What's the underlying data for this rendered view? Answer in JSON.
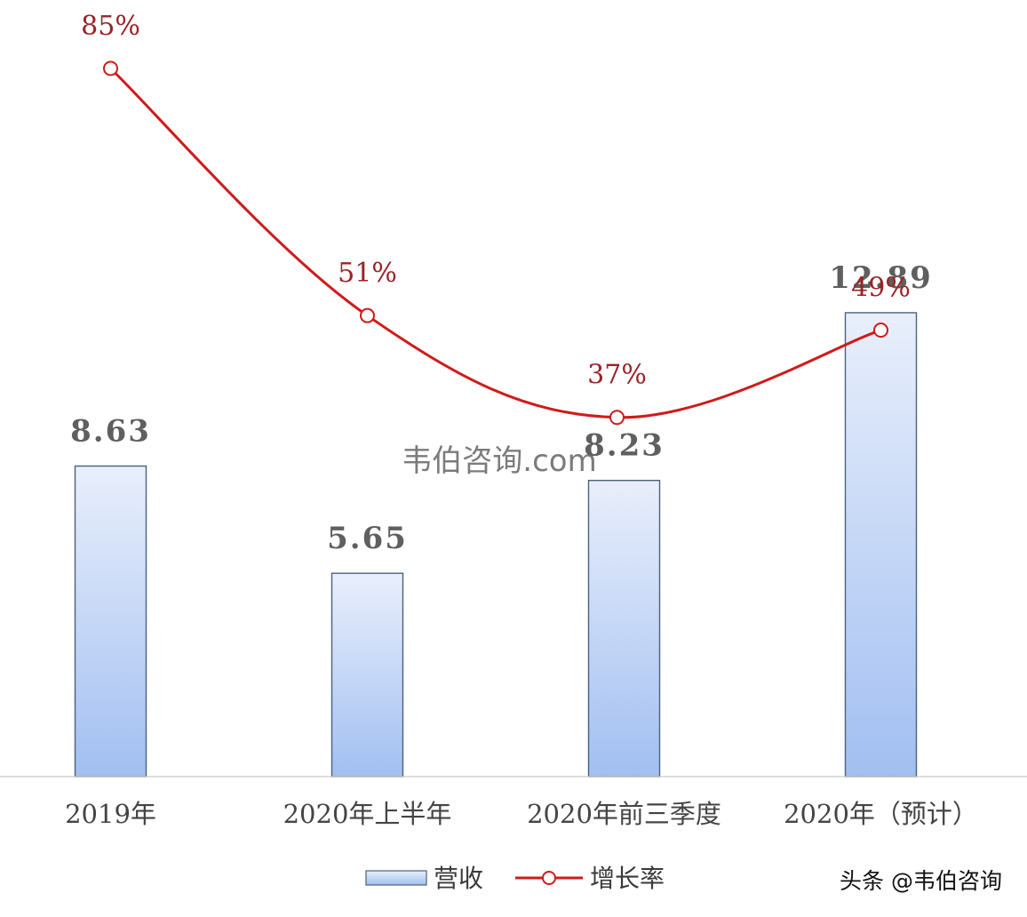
{
  "chart_data": {
    "type": "bar",
    "categories": [
      "2019年",
      "2020年上半年",
      "2020年前三季度",
      "2020年（预计）"
    ],
    "series": [
      {
        "name": "营收",
        "type": "bar",
        "values": [
          8.63,
          5.65,
          8.23,
          12.89
        ],
        "labels": [
          "8.63",
          "5.65",
          "8.23",
          "12.89"
        ]
      },
      {
        "name": "增长率",
        "type": "line",
        "values": [
          85,
          51,
          37,
          49
        ],
        "labels": [
          "85%",
          "51%",
          "37%",
          "49%"
        ]
      }
    ],
    "ylim_left": [
      0,
      14
    ],
    "ylim_right": [
      30,
      85
    ],
    "legend_position": "bottom",
    "grid": false,
    "colors": {
      "bar_top": "#e9effb",
      "bar_bottom": "#a2bff1",
      "bar_edge": "#4a6180",
      "line": "#d01a1a",
      "line_label": "#9b2226",
      "bar_label": "#5f5f5f",
      "axis": "#c9c9c9"
    }
  },
  "watermark": {
    "text": "韦伯咨询.com"
  },
  "attribution": {
    "text": "头条 @韦伯咨询"
  }
}
